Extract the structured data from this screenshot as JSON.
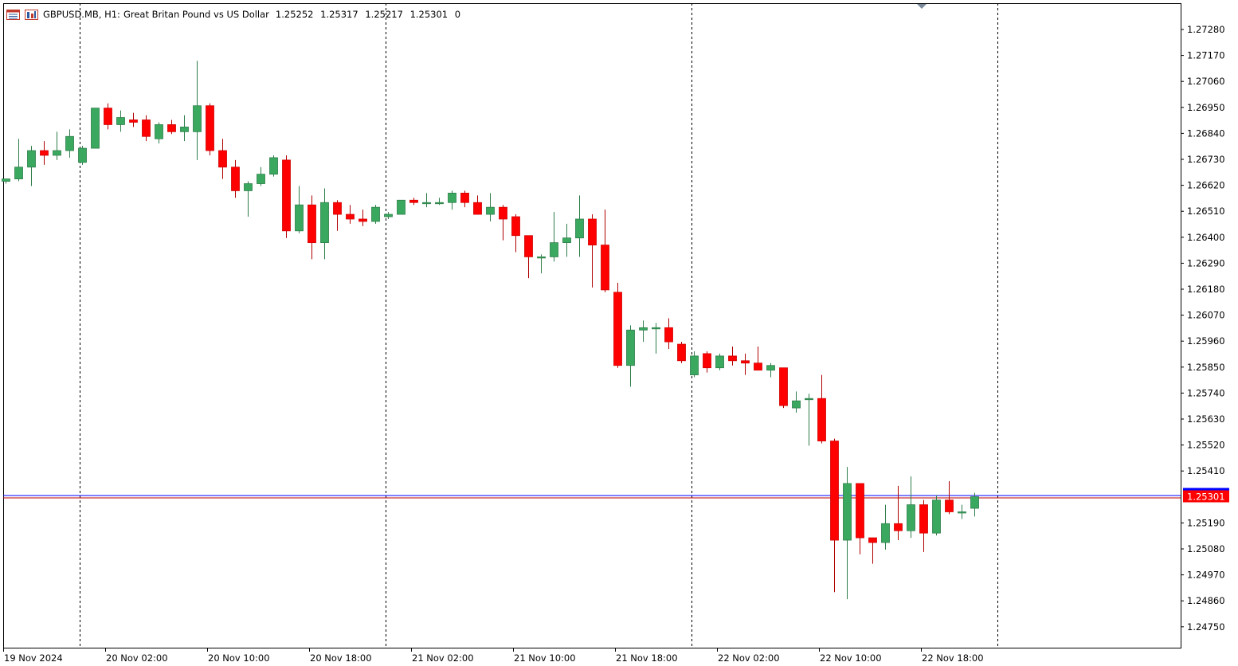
{
  "header": {
    "symbol": "GBPUSD.MB, H1:",
    "description": "Great Britan Pound vs US Dollar",
    "open": "1.25252",
    "high": "1.25317",
    "low": "1.25217",
    "close": "1.25301",
    "volume": "0",
    "icons": [
      "chart-window-icon",
      "chart-type-icon"
    ]
  },
  "colors": {
    "bull": "#3aa95f",
    "bear": "#ff0000",
    "frame": "#000000",
    "bid_line": "#0000ff",
    "ask_line": "#c00000",
    "price_label_bg": "#ff0000"
  },
  "chart_data": {
    "type": "candlestick",
    "timeframe": "H1",
    "symbol": "GBPUSD.MB",
    "x_tick_labels": [
      "19 Nov 2024",
      "20 Nov 02:00",
      "20 Nov 10:00",
      "20 Nov 18:00",
      "21 Nov 02:00",
      "21 Nov 10:00",
      "21 Nov 18:00",
      "22 Nov 02:00",
      "22 Nov 10:00",
      "22 Nov 18:00"
    ],
    "y_tick_labels": [
      "1.27280",
      "1.27170",
      "1.27060",
      "1.26950",
      "1.26840",
      "1.26730",
      "1.26620",
      "1.26510",
      "1.26400",
      "1.26290",
      "1.26180",
      "1.26070",
      "1.25960",
      "1.25850",
      "1.25740",
      "1.25630",
      "1.25520",
      "1.25410",
      "1.25190",
      "1.25080",
      "1.24970",
      "1.24860",
      "1.24750"
    ],
    "ylim": [
      1.2472,
      1.2736
    ],
    "current_price_label": "1.25301",
    "current_price": 1.25301,
    "grid": false,
    "candles": [
      {
        "o": 1.26637,
        "h": 1.26647,
        "l": 1.26627,
        "c": 1.26647
      },
      {
        "o": 1.26647,
        "h": 1.26817,
        "l": 1.26637,
        "c": 1.26697
      },
      {
        "o": 1.26697,
        "h": 1.26787,
        "l": 1.26617,
        "c": 1.26767
      },
      {
        "o": 1.26767,
        "h": 1.26807,
        "l": 1.26707,
        "c": 1.26747
      },
      {
        "o": 1.26747,
        "h": 1.26847,
        "l": 1.26727,
        "c": 1.26767
      },
      {
        "o": 1.26767,
        "h": 1.26857,
        "l": 1.26737,
        "c": 1.26827
      },
      {
        "o": 1.26717,
        "h": 1.26787,
        "l": 1.26707,
        "c": 1.26777
      },
      {
        "o": 1.26777,
        "h": 1.26947,
        "l": 1.26777,
        "c": 1.26947
      },
      {
        "o": 1.26947,
        "h": 1.26967,
        "l": 1.26857,
        "c": 1.26877
      },
      {
        "o": 1.26877,
        "h": 1.26937,
        "l": 1.26847,
        "c": 1.26907
      },
      {
        "o": 1.26897,
        "h": 1.26927,
        "l": 1.26867,
        "c": 1.26887
      },
      {
        "o": 1.26897,
        "h": 1.26917,
        "l": 1.26807,
        "c": 1.26827
      },
      {
        "o": 1.26817,
        "h": 1.26887,
        "l": 1.26797,
        "c": 1.26877
      },
      {
        "o": 1.26877,
        "h": 1.26897,
        "l": 1.26837,
        "c": 1.26847
      },
      {
        "o": 1.26847,
        "h": 1.26917,
        "l": 1.26807,
        "c": 1.26867
      },
      {
        "o": 1.26847,
        "h": 1.27147,
        "l": 1.26727,
        "c": 1.26957
      },
      {
        "o": 1.26957,
        "h": 1.26967,
        "l": 1.26747,
        "c": 1.26767
      },
      {
        "o": 1.26767,
        "h": 1.26817,
        "l": 1.26647,
        "c": 1.26697
      },
      {
        "o": 1.26697,
        "h": 1.26727,
        "l": 1.26567,
        "c": 1.26597
      },
      {
        "o": 1.26597,
        "h": 1.26637,
        "l": 1.26487,
        "c": 1.26627
      },
      {
        "o": 1.26627,
        "h": 1.26697,
        "l": 1.26617,
        "c": 1.26667
      },
      {
        "o": 1.26667,
        "h": 1.26747,
        "l": 1.26657,
        "c": 1.26737
      },
      {
        "o": 1.26727,
        "h": 1.26747,
        "l": 1.26397,
        "c": 1.26427
      },
      {
        "o": 1.26427,
        "h": 1.26617,
        "l": 1.26417,
        "c": 1.26537
      },
      {
        "o": 1.26537,
        "h": 1.26577,
        "l": 1.26307,
        "c": 1.26377
      },
      {
        "o": 1.26377,
        "h": 1.26607,
        "l": 1.26307,
        "c": 1.26547
      },
      {
        "o": 1.26547,
        "h": 1.26557,
        "l": 1.26427,
        "c": 1.26497
      },
      {
        "o": 1.26497,
        "h": 1.26537,
        "l": 1.26457,
        "c": 1.26477
      },
      {
        "o": 1.26477,
        "h": 1.26517,
        "l": 1.26447,
        "c": 1.26467
      },
      {
        "o": 1.26467,
        "h": 1.26537,
        "l": 1.26457,
        "c": 1.26527
      },
      {
        "o": 1.26487,
        "h": 1.26507,
        "l": 1.26477,
        "c": 1.26497
      },
      {
        "o": 1.26497,
        "h": 1.26557,
        "l": 1.26497,
        "c": 1.26557
      },
      {
        "o": 1.26557,
        "h": 1.26567,
        "l": 1.26537,
        "c": 1.26547
      },
      {
        "o": 1.26547,
        "h": 1.26587,
        "l": 1.26527,
        "c": 1.26547
      },
      {
        "o": 1.26547,
        "h": 1.26567,
        "l": 1.26537,
        "c": 1.26547
      },
      {
        "o": 1.26547,
        "h": 1.26597,
        "l": 1.26517,
        "c": 1.26587
      },
      {
        "o": 1.26587,
        "h": 1.26597,
        "l": 1.26527,
        "c": 1.26547
      },
      {
        "o": 1.26547,
        "h": 1.26577,
        "l": 1.26497,
        "c": 1.26497
      },
      {
        "o": 1.26497,
        "h": 1.26587,
        "l": 1.26467,
        "c": 1.26527
      },
      {
        "o": 1.26527,
        "h": 1.26537,
        "l": 1.26387,
        "c": 1.26477
      },
      {
        "o": 1.26487,
        "h": 1.26497,
        "l": 1.26337,
        "c": 1.26407
      },
      {
        "o": 1.26407,
        "h": 1.26407,
        "l": 1.26227,
        "c": 1.26317
      },
      {
        "o": 1.26317,
        "h": 1.26327,
        "l": 1.26247,
        "c": 1.26317
      },
      {
        "o": 1.26317,
        "h": 1.26507,
        "l": 1.26297,
        "c": 1.26377
      },
      {
        "o": 1.26377,
        "h": 1.26457,
        "l": 1.26317,
        "c": 1.26397
      },
      {
        "o": 1.26397,
        "h": 1.26577,
        "l": 1.26317,
        "c": 1.26477
      },
      {
        "o": 1.26477,
        "h": 1.26497,
        "l": 1.26187,
        "c": 1.26367
      },
      {
        "o": 1.26367,
        "h": 1.26517,
        "l": 1.26167,
        "c": 1.26177
      },
      {
        "o": 1.26167,
        "h": 1.26207,
        "l": 1.25847,
        "c": 1.25857
      },
      {
        "o": 1.25857,
        "h": 1.26027,
        "l": 1.25767,
        "c": 1.26007
      },
      {
        "o": 1.26007,
        "h": 1.26047,
        "l": 1.25957,
        "c": 1.26017
      },
      {
        "o": 1.26017,
        "h": 1.26037,
        "l": 1.25907,
        "c": 1.26017
      },
      {
        "o": 1.26017,
        "h": 1.26057,
        "l": 1.25927,
        "c": 1.25957
      },
      {
        "o": 1.25947,
        "h": 1.25957,
        "l": 1.25867,
        "c": 1.25877
      },
      {
        "o": 1.25817,
        "h": 1.25917,
        "l": 1.25807,
        "c": 1.25897
      },
      {
        "o": 1.25907,
        "h": 1.25917,
        "l": 1.25827,
        "c": 1.25847
      },
      {
        "o": 1.25847,
        "h": 1.25907,
        "l": 1.25837,
        "c": 1.25897
      },
      {
        "o": 1.25897,
        "h": 1.25937,
        "l": 1.25857,
        "c": 1.25877
      },
      {
        "o": 1.25877,
        "h": 1.25907,
        "l": 1.25817,
        "c": 1.25867
      },
      {
        "o": 1.25867,
        "h": 1.25937,
        "l": 1.25837,
        "c": 1.25837
      },
      {
        "o": 1.25837,
        "h": 1.25867,
        "l": 1.25807,
        "c": 1.25857
      },
      {
        "o": 1.25847,
        "h": 1.25847,
        "l": 1.25677,
        "c": 1.25687
      },
      {
        "o": 1.25677,
        "h": 1.25747,
        "l": 1.25657,
        "c": 1.25707
      },
      {
        "o": 1.25717,
        "h": 1.25737,
        "l": 1.25517,
        "c": 1.25717
      },
      {
        "o": 1.25717,
        "h": 1.25817,
        "l": 1.25527,
        "c": 1.25537
      },
      {
        "o": 1.25537,
        "h": 1.25547,
        "l": 1.24897,
        "c": 1.25117
      },
      {
        "o": 1.25117,
        "h": 1.25427,
        "l": 1.24867,
        "c": 1.25357
      },
      {
        "o": 1.25357,
        "h": 1.25357,
        "l": 1.25057,
        "c": 1.25127
      },
      {
        "o": 1.25127,
        "h": 1.25127,
        "l": 1.25017,
        "c": 1.25107
      },
      {
        "o": 1.25107,
        "h": 1.25267,
        "l": 1.25077,
        "c": 1.25187
      },
      {
        "o": 1.25187,
        "h": 1.25347,
        "l": 1.25117,
        "c": 1.25157
      },
      {
        "o": 1.25157,
        "h": 1.25387,
        "l": 1.25127,
        "c": 1.25267
      },
      {
        "o": 1.25267,
        "h": 1.25287,
        "l": 1.25067,
        "c": 1.25147
      },
      {
        "o": 1.25147,
        "h": 1.25307,
        "l": 1.25137,
        "c": 1.25287
      },
      {
        "o": 1.25287,
        "h": 1.25367,
        "l": 1.25227,
        "c": 1.25237
      },
      {
        "o": 1.25237,
        "h": 1.25267,
        "l": 1.25207,
        "c": 1.25237
      },
      {
        "o": 1.25252,
        "h": 1.25317,
        "l": 1.25217,
        "c": 1.25301
      }
    ]
  }
}
